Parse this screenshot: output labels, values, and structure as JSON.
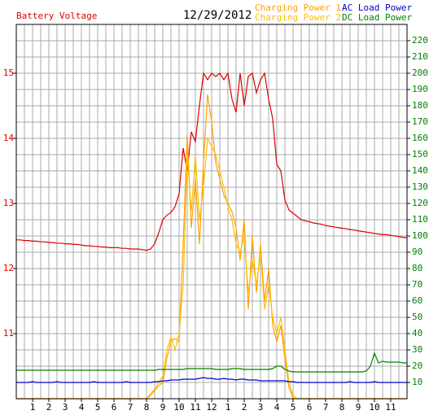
{
  "chart_data": {
    "type": "line",
    "title": "12/29/2012",
    "x": [
      0,
      0.25,
      0.5,
      0.75,
      1,
      1.25,
      1.5,
      1.75,
      2,
      2.25,
      2.5,
      2.75,
      3,
      3.25,
      3.5,
      3.75,
      4,
      4.25,
      4.5,
      4.75,
      5,
      5.25,
      5.5,
      5.75,
      6,
      6.25,
      6.5,
      6.75,
      7,
      7.25,
      7.5,
      7.75,
      8,
      8.25,
      8.5,
      8.75,
      9,
      9.25,
      9.5,
      9.75,
      10,
      10.25,
      10.5,
      10.75,
      11,
      11.25,
      11.5,
      11.75,
      12,
      12.25,
      12.5,
      12.75,
      13,
      13.25,
      13.5,
      13.75,
      14,
      14.25,
      14.5,
      14.75,
      15,
      15.25,
      15.5,
      15.75,
      16,
      16.25,
      16.5,
      16.75,
      17,
      17.25,
      17.5,
      17.75,
      18,
      18.25,
      18.5,
      18.75,
      19,
      19.25,
      19.5,
      19.75,
      20,
      20.25,
      20.5,
      20.75,
      21,
      21.25,
      21.5,
      21.75,
      22,
      22.25,
      22.5,
      22.75,
      23,
      23.25,
      23.5,
      23.75,
      24
    ],
    "xlim": [
      0,
      24
    ],
    "xticks": [
      1,
      2,
      3,
      4,
      5,
      6,
      7,
      8,
      9,
      10,
      11,
      12,
      {
        "value": 13,
        "label": "1"
      },
      {
        "value": 14,
        "label": "2"
      },
      {
        "value": 15,
        "label": "3"
      },
      {
        "value": 16,
        "label": "4"
      },
      {
        "value": 17,
        "label": "5"
      },
      {
        "value": 18,
        "label": "6"
      },
      {
        "value": 19,
        "label": "7"
      },
      {
        "value": 20,
        "label": "8"
      },
      {
        "value": 21,
        "label": "9"
      },
      {
        "value": 22,
        "label": "10"
      },
      {
        "value": 23,
        "label": "11"
      }
    ],
    "ylim": [
      10,
      15.75
    ],
    "yticks": [
      11,
      12,
      13,
      14,
      15
    ],
    "y2lim": [
      0,
      230
    ],
    "y2ticks": [
      10,
      20,
      30,
      40,
      50,
      60,
      70,
      80,
      90,
      100,
      110,
      120,
      130,
      140,
      150,
      160,
      170,
      180,
      190,
      200,
      210,
      220
    ],
    "grid": true,
    "series": [
      {
        "name": "Battery Voltage",
        "color": "#dd0000",
        "values": [
          12.44,
          12.44,
          12.43,
          12.43,
          12.42,
          12.42,
          12.41,
          12.41,
          12.4,
          12.4,
          12.39,
          12.39,
          12.38,
          12.38,
          12.37,
          12.37,
          12.36,
          12.35,
          12.35,
          12.34,
          12.34,
          12.33,
          12.33,
          12.32,
          12.32,
          12.32,
          12.31,
          12.31,
          12.3,
          12.3,
          12.3,
          12.29,
          12.28,
          12.3,
          12.38,
          12.55,
          12.75,
          12.82,
          12.86,
          12.95,
          13.15,
          13.85,
          13.5,
          14.1,
          13.95,
          14.5,
          15.0,
          14.9,
          15.0,
          14.95,
          15.0,
          14.9,
          15.0,
          14.6,
          14.4,
          15.0,
          14.5,
          14.95,
          15.0,
          14.7,
          14.9,
          15.0,
          14.6,
          14.3,
          13.6,
          13.5,
          13.05,
          12.9,
          12.85,
          12.8,
          12.75,
          12.73,
          12.72,
          12.7,
          12.69,
          12.68,
          12.66,
          12.65,
          12.64,
          12.63,
          12.62,
          12.61,
          12.6,
          12.59,
          12.58,
          12.57,
          12.56,
          12.55,
          12.54,
          12.53,
          12.52,
          12.52,
          12.51,
          12.5,
          12.49,
          12.48,
          12.47
        ]
      },
      {
        "name": "Charging Power 1",
        "color": "#ffa000",
        "axis": "y2",
        "values": [
          0,
          0,
          0,
          0,
          0,
          0,
          0,
          0,
          0,
          0,
          0,
          0,
          0,
          0,
          0,
          0,
          0,
          0,
          0,
          0,
          0,
          0,
          0,
          0,
          0,
          0,
          0,
          0,
          0,
          0,
          0,
          0,
          0,
          2,
          5,
          8,
          10,
          25,
          35,
          37,
          35,
          95,
          162,
          105,
          135,
          95,
          145,
          187,
          170,
          145,
          135,
          125,
          120,
          115,
          105,
          85,
          110,
          55,
          100,
          65,
          95,
          60,
          80,
          45,
          35,
          45,
          25,
          7,
          0,
          0,
          0,
          0,
          0,
          0,
          0,
          0,
          0,
          0,
          0,
          0,
          0,
          0,
          0,
          0,
          0,
          0,
          0,
          0,
          0,
          0,
          0,
          0,
          0,
          0,
          0,
          0,
          0
        ]
      },
      {
        "name": "Charging Power 2",
        "color": "#ffc000",
        "axis": "y2",
        "values": [
          0,
          0,
          0,
          0,
          0,
          0,
          0,
          0,
          0,
          0,
          0,
          0,
          0,
          0,
          0,
          0,
          0,
          0,
          0,
          0,
          0,
          0,
          0,
          0,
          0,
          0,
          0,
          0,
          0,
          0,
          0,
          0,
          0,
          3,
          6,
          10,
          14,
          30,
          38,
          30,
          40,
          70,
          150,
          115,
          150,
          110,
          130,
          160,
          155,
          150,
          140,
          130,
          118,
          110,
          95,
          90,
          100,
          65,
          85,
          70,
          90,
          55,
          70,
          50,
          40,
          50,
          30,
          10,
          2,
          0,
          0,
          0,
          0,
          0,
          0,
          0,
          0,
          0,
          0,
          0,
          0,
          0,
          0,
          0,
          0,
          0,
          0,
          0,
          0,
          0,
          0,
          0,
          0,
          0,
          0,
          0,
          0
        ]
      },
      {
        "name": "AC Load Power",
        "color": "#0000cc",
        "axis": "y2",
        "values": [
          10,
          10,
          10,
          10,
          10.5,
          10,
          10,
          10,
          10,
          10,
          10.5,
          10,
          10,
          10,
          10,
          10,
          10,
          10,
          10,
          10.5,
          10,
          10,
          10,
          10,
          10,
          10,
          10,
          10.5,
          10,
          10,
          10,
          10,
          10,
          10,
          10.5,
          10.5,
          11,
          11,
          11.5,
          11.5,
          11.5,
          12,
          12,
          12,
          12,
          12.5,
          13,
          12.5,
          12.5,
          12,
          12,
          12.5,
          12,
          12,
          11.5,
          12,
          12,
          11.5,
          11.5,
          11.5,
          11,
          11,
          11,
          11,
          11,
          11,
          11,
          10.5,
          10.5,
          10,
          10,
          10,
          10,
          10,
          10,
          10,
          10,
          10,
          10,
          10,
          10,
          10,
          10.5,
          10,
          10,
          10,
          10,
          10,
          10.5,
          10,
          10,
          10,
          10,
          10,
          10,
          10,
          10
        ]
      },
      {
        "name": "DC Load Power",
        "color": "#008000",
        "axis": "y2",
        "values": [
          17.5,
          17.5,
          17.5,
          17.5,
          17.5,
          17.5,
          17.5,
          17.5,
          17.5,
          17.5,
          17.5,
          17.5,
          17.5,
          17.5,
          17.5,
          17.5,
          17.5,
          17.5,
          17.5,
          17.5,
          17.5,
          17.5,
          17.5,
          17.5,
          17.5,
          17.5,
          17.5,
          17.5,
          17.5,
          17.5,
          17.5,
          17.5,
          17.5,
          17.5,
          17.5,
          18,
          18,
          18,
          18,
          18,
          18,
          18,
          18.5,
          18.5,
          18.5,
          18.5,
          18.5,
          18.5,
          18.5,
          18,
          18,
          18,
          18,
          18.5,
          18.5,
          18.5,
          18,
          18,
          18,
          18,
          18,
          18,
          18,
          18.5,
          20,
          20,
          18,
          17,
          16.5,
          16.5,
          16.5,
          16.5,
          16.5,
          16.5,
          16.5,
          16.5,
          16.5,
          16.5,
          16.5,
          16.5,
          16.5,
          16.5,
          16.5,
          16.5,
          16.5,
          16.5,
          17,
          20,
          28,
          22,
          23,
          22.5,
          22.5,
          22.5,
          22.5,
          22,
          22
        ]
      }
    ]
  }
}
